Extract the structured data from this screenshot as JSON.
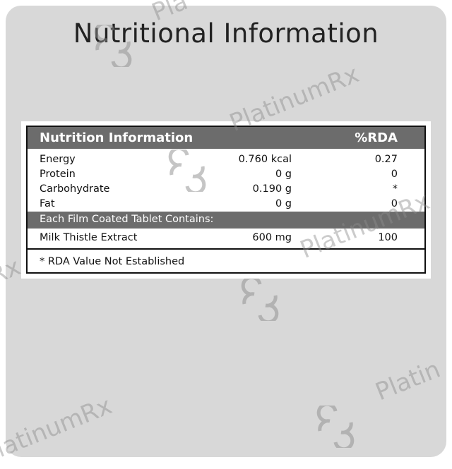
{
  "title": "Nutritional Information",
  "table": {
    "header": {
      "label": "Nutrition Information",
      "rda": "%RDA"
    },
    "rows": [
      {
        "name": "Energy",
        "amount": "0.760 kcal",
        "rda": "0.27"
      },
      {
        "name": "Protein",
        "amount": "0 g",
        "rda": "0"
      },
      {
        "name": "Carbohydrate",
        "amount": "0.190 g",
        "rda": "*"
      },
      {
        "name": "Fat",
        "amount": "0 g",
        "rda": "0"
      }
    ],
    "section": "Each Film Coated Tablet Contains:",
    "ingredients": [
      {
        "name": "Milk Thistle Extract",
        "amount": "600 mg",
        "rda": "100"
      }
    ],
    "footnote": "* RDA Value Not Established"
  },
  "watermark": {
    "text": "PlatinumRx",
    "color": "#8c8c8c"
  }
}
